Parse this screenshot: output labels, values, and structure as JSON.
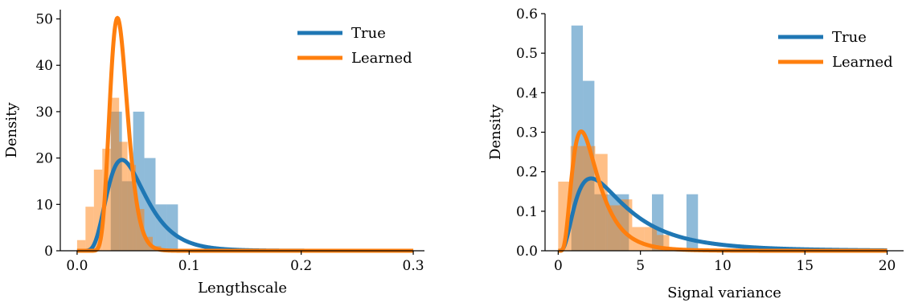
{
  "chart_data": [
    {
      "type": "histogram+line",
      "xlabel": "Lengthscale",
      "ylabel": "Density",
      "xlim": [
        -0.015,
        0.31
      ],
      "ylim": [
        0,
        52
      ],
      "xticks": [
        0.0,
        0.1,
        0.2,
        0.3
      ],
      "xtick_labels": [
        "0.0",
        "0.1",
        "0.2",
        "0.3"
      ],
      "yticks": [
        0,
        10,
        20,
        30,
        40,
        50
      ],
      "ytick_labels": [
        "0",
        "10",
        "20",
        "30",
        "40",
        "50"
      ],
      "legend_position": "top-right",
      "legend": [
        {
          "name": "True",
          "color": "#1f77b4"
        },
        {
          "name": "Learned",
          "color": "#ff7f0e"
        }
      ],
      "histograms": [
        {
          "series": "True",
          "color": "#1f77b4",
          "bin_edges": [
            0.01,
            0.02,
            0.03,
            0.04,
            0.05,
            0.06,
            0.07,
            0.08,
            0.09
          ],
          "values": [
            0,
            0,
            30,
            15,
            30,
            20,
            10,
            10
          ]
        },
        {
          "series": "Learned",
          "color": "#ff7f0e",
          "bin_edges": [
            0.0,
            0.0075,
            0.015,
            0.0225,
            0.03,
            0.0375,
            0.045,
            0.0525,
            0.06,
            0.0675,
            0.075
          ],
          "values": [
            2.3,
            9.5,
            17.5,
            22,
            33,
            23.5,
            18.5,
            9,
            3,
            1
          ]
        }
      ],
      "curves": [
        {
          "series": "True",
          "color": "#1f77b4",
          "kind": "lognormal",
          "mode": 0.04,
          "peak": 19.6,
          "sigma": 0.42,
          "x_range": [
            0,
            0.3
          ]
        },
        {
          "series": "Learned",
          "color": "#ff7f0e",
          "kind": "lognormal",
          "mode": 0.036,
          "peak": 50.2,
          "sigma": 0.22,
          "x_range": [
            0,
            0.3
          ]
        }
      ]
    },
    {
      "type": "histogram+line",
      "xlabel": "Signal variance",
      "ylabel": "Density",
      "xlim": [
        -0.8,
        21
      ],
      "ylim": [
        0,
        0.6
      ],
      "xticks": [
        0,
        5,
        10,
        15,
        20
      ],
      "xtick_labels": [
        "0",
        "5",
        "10",
        "15",
        "20"
      ],
      "yticks": [
        0.0,
        0.1,
        0.2,
        0.3,
        0.4,
        0.5,
        0.6
      ],
      "ytick_labels": [
        "0.0",
        "0.1",
        "0.2",
        "0.3",
        "0.4",
        "0.5",
        "0.6"
      ],
      "legend_position": "top-right",
      "legend": [
        {
          "name": "True",
          "color": "#1f77b4"
        },
        {
          "name": "Learned",
          "color": "#ff7f0e"
        }
      ],
      "histograms": [
        {
          "series": "True",
          "color": "#1f77b4",
          "bin_edges": [
            0.8,
            1.5,
            2.2,
            2.9,
            3.6,
            4.3,
            5.0,
            5.7,
            6.4,
            7.1,
            7.8,
            8.5
          ],
          "values": [
            0.57,
            0.43,
            0.143,
            0.143,
            0.143,
            0,
            0,
            0.143,
            0,
            0,
            0.143
          ]
        },
        {
          "series": "Learned",
          "color": "#ff7f0e",
          "bin_edges": [
            0.0,
            0.75,
            1.5,
            2.25,
            3.0,
            3.75,
            4.5,
            5.25,
            6.0,
            6.75
          ],
          "values": [
            0.175,
            0.265,
            0.265,
            0.245,
            0.115,
            0.13,
            0.06,
            0.06,
            0.04
          ]
        }
      ],
      "curves": [
        {
          "series": "True",
          "color": "#1f77b4",
          "kind": "lognormal",
          "mode": 2.0,
          "peak": 0.183,
          "sigma": 0.72,
          "x_range": [
            0,
            20
          ]
        },
        {
          "series": "Learned",
          "color": "#ff7f0e",
          "kind": "lognormal",
          "mode": 1.4,
          "peak": 0.302,
          "sigma": 0.55,
          "x_range": [
            0,
            20
          ]
        }
      ]
    }
  ]
}
